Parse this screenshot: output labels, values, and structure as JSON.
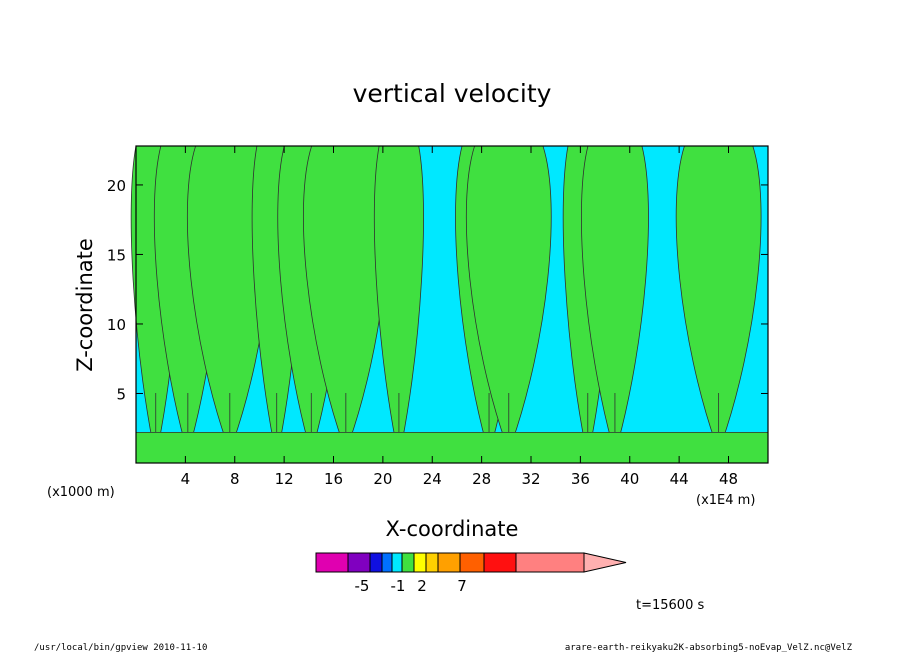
{
  "chart_data": {
    "type": "heatmap",
    "title": "vertical velocity",
    "xlabel": "X-coordinate",
    "ylabel": "Z-coordinate",
    "x_unit_left": "(x1000 m)",
    "x_unit_right": "(x1E4 m)",
    "xlim": [
      0,
      51.2
    ],
    "ylim": [
      0,
      22.8
    ],
    "x_ticks": [
      4,
      8,
      12,
      16,
      20,
      24,
      28,
      32,
      36,
      40,
      44,
      48
    ],
    "y_ticks": [
      5,
      10,
      15,
      20
    ],
    "plume_centers_x": [
      1.6,
      4.2,
      7.6,
      11.4,
      14.2,
      17.0,
      21.3,
      28.6,
      30.2,
      36.6,
      38.8,
      47.2
    ],
    "colorbar": {
      "colors": [
        "#e000b0",
        "#8000c0",
        "#1010e0",
        "#0070ff",
        "#00e8ff",
        "#40e040",
        "#ffff00",
        "#ffd000",
        "#ffa000",
        "#ff6000",
        "#ff1010",
        "#ff8080",
        "#ffb0b0"
      ],
      "labels": [
        "-5",
        "-1",
        "2",
        "7"
      ]
    },
    "time_label": "t=15600 s"
  },
  "footer": {
    "left": "/usr/local/bin/gpview   2010-11-10",
    "right": "arare-earth-reikyaku2K-absorbing5-noEvap_VelZ.nc@VelZ"
  }
}
